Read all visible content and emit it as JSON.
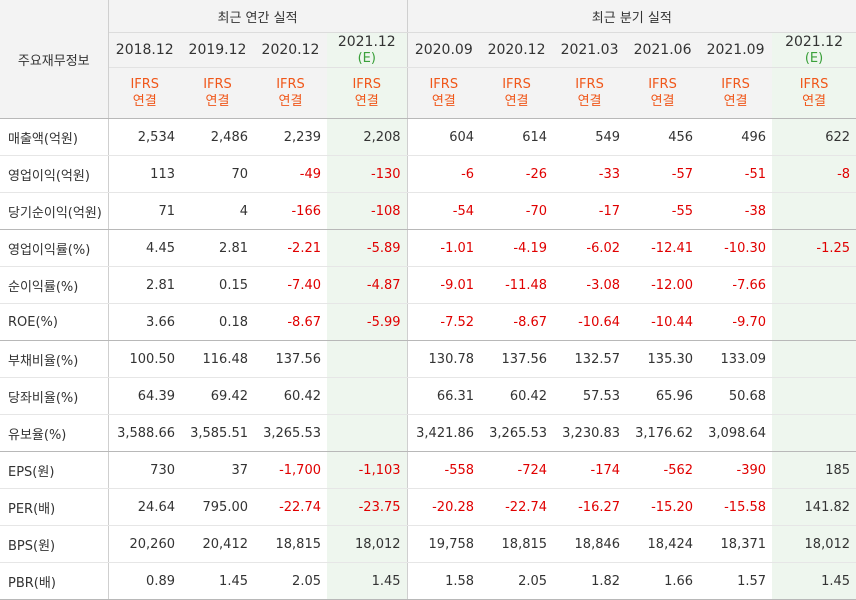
{
  "table": {
    "corner_label": "주요재무정보",
    "annual_group": "최근 연간 실적",
    "quarter_group": "최근 분기 실적",
    "accounting": "IFRS",
    "scope": "연결",
    "estimate_mark": "(E)",
    "periods": [
      {
        "label": "2018.12",
        "forecast": false
      },
      {
        "label": "2019.12",
        "forecast": false
      },
      {
        "label": "2020.12",
        "forecast": false
      },
      {
        "label": "2021.12",
        "forecast": true
      },
      {
        "label": "2020.09",
        "forecast": false
      },
      {
        "label": "2020.12",
        "forecast": false
      },
      {
        "label": "2021.03",
        "forecast": false
      },
      {
        "label": "2021.06",
        "forecast": false
      },
      {
        "label": "2021.09",
        "forecast": false
      },
      {
        "label": "2021.12",
        "forecast": true
      }
    ],
    "rows": [
      {
        "label": "매출액(억원)",
        "values": [
          "2,534",
          "2,486",
          "2,239",
          "2,208",
          "604",
          "614",
          "549",
          "456",
          "496",
          "622"
        ]
      },
      {
        "label": "영업이익(억원)",
        "values": [
          "113",
          "70",
          "-49",
          "-130",
          "-6",
          "-26",
          "-33",
          "-57",
          "-51",
          "-8"
        ]
      },
      {
        "label": "당기순이익(억원)",
        "values": [
          "71",
          "4",
          "-166",
          "-108",
          "-54",
          "-70",
          "-17",
          "-55",
          "-38",
          ""
        ]
      },
      {
        "label": "영업이익률(%)",
        "values": [
          "4.45",
          "2.81",
          "-2.21",
          "-5.89",
          "-1.01",
          "-4.19",
          "-6.02",
          "-12.41",
          "-10.30",
          "-1.25"
        ]
      },
      {
        "label": "순이익률(%)",
        "values": [
          "2.81",
          "0.15",
          "-7.40",
          "-4.87",
          "-9.01",
          "-11.48",
          "-3.08",
          "-12.00",
          "-7.66",
          ""
        ]
      },
      {
        "label": "ROE(%)",
        "values": [
          "3.66",
          "0.18",
          "-8.67",
          "-5.99",
          "-7.52",
          "-8.67",
          "-10.64",
          "-10.44",
          "-9.70",
          ""
        ]
      },
      {
        "label": "부채비율(%)",
        "values": [
          "100.50",
          "116.48",
          "137.56",
          "",
          "130.78",
          "137.56",
          "132.57",
          "135.30",
          "133.09",
          ""
        ]
      },
      {
        "label": "당좌비율(%)",
        "values": [
          "64.39",
          "69.42",
          "60.42",
          "",
          "66.31",
          "60.42",
          "57.53",
          "65.96",
          "50.68",
          ""
        ]
      },
      {
        "label": "유보율(%)",
        "values": [
          "3,588.66",
          "3,585.51",
          "3,265.53",
          "",
          "3,421.86",
          "3,265.53",
          "3,230.83",
          "3,176.62",
          "3,098.64",
          ""
        ]
      },
      {
        "label": "EPS(원)",
        "values": [
          "730",
          "37",
          "-1,700",
          "-1,103",
          "-558",
          "-724",
          "-174",
          "-562",
          "-390",
          "185"
        ]
      },
      {
        "label": "PER(배)",
        "values": [
          "24.64",
          "795.00",
          "-22.74",
          "-23.75",
          "-20.28",
          "-22.74",
          "-16.27",
          "-15.20",
          "-15.58",
          "141.82"
        ]
      },
      {
        "label": "BPS(원)",
        "values": [
          "20,260",
          "20,412",
          "18,815",
          "18,012",
          "19,758",
          "18,815",
          "18,846",
          "18,424",
          "18,371",
          "18,012"
        ]
      },
      {
        "label": "PBR(배)",
        "values": [
          "0.89",
          "1.45",
          "2.05",
          "1.45",
          "1.58",
          "2.05",
          "1.82",
          "1.66",
          "1.57",
          "1.45"
        ]
      }
    ]
  }
}
